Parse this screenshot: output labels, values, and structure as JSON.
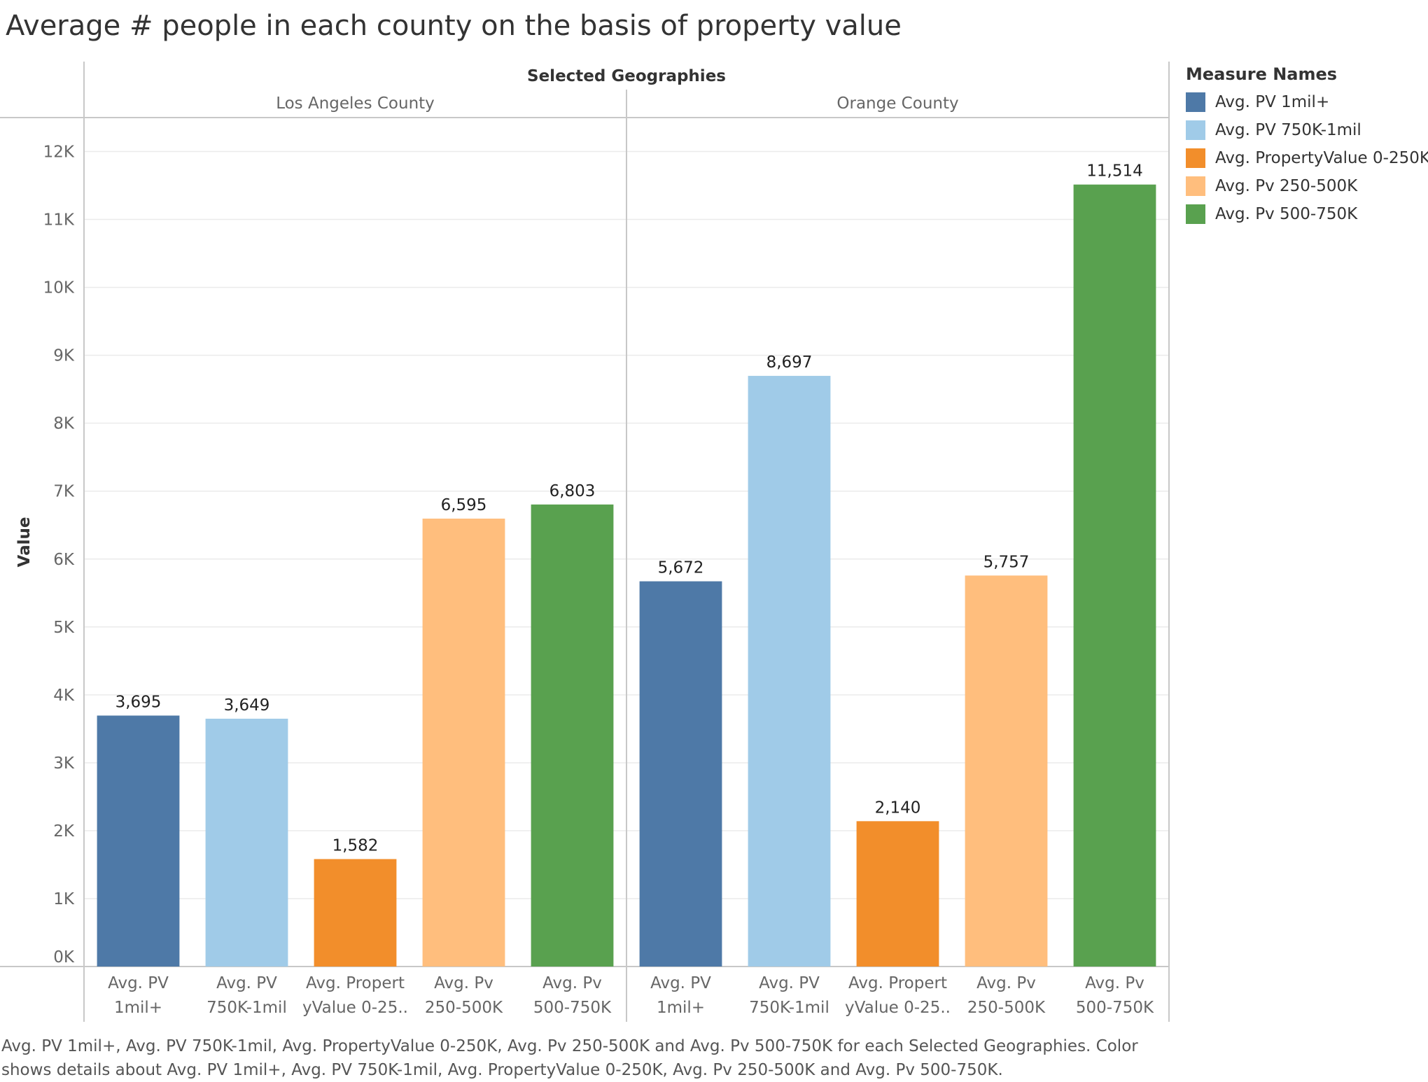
{
  "chart_data": {
    "type": "bar",
    "title": "Average # people in each county on the basis of property value",
    "column_header": "Selected Geographies",
    "ylabel": "Value",
    "ylim": [
      0,
      12500
    ],
    "y_ticks": [
      {
        "value": 0,
        "label": "0K"
      },
      {
        "value": 1000,
        "label": "1K"
      },
      {
        "value": 2000,
        "label": "2K"
      },
      {
        "value": 3000,
        "label": "3K"
      },
      {
        "value": 4000,
        "label": "4K"
      },
      {
        "value": 5000,
        "label": "5K"
      },
      {
        "value": 6000,
        "label": "6K"
      },
      {
        "value": 7000,
        "label": "7K"
      },
      {
        "value": 8000,
        "label": "8K"
      },
      {
        "value": 9000,
        "label": "9K"
      },
      {
        "value": 10000,
        "label": "10K"
      },
      {
        "value": 11000,
        "label": "11K"
      },
      {
        "value": 12000,
        "label": "12K"
      }
    ],
    "grid": true,
    "legend_title": "Measure Names",
    "legend_position": "right",
    "measures": [
      {
        "name": "Avg. PV 1mil+",
        "tick": [
          "Avg. PV",
          "1mil+"
        ],
        "color": "#4e79a7"
      },
      {
        "name": "Avg. PV 750K-1mil",
        "tick": [
          "Avg. PV",
          "750K-1mil"
        ],
        "color": "#a0cbe8"
      },
      {
        "name": "Avg. PropertyValue 0-250K",
        "tick": [
          "Avg. Propert",
          "yValue 0-25.."
        ],
        "color": "#f28e2b"
      },
      {
        "name": "Avg. Pv 250-500K",
        "tick": [
          "Avg. Pv",
          "250-500K"
        ],
        "color": "#ffbe7d"
      },
      {
        "name": "Avg. Pv 500-750K",
        "tick": [
          "Avg. Pv",
          "500-750K"
        ],
        "color": "#59a14f"
      }
    ],
    "panels": [
      {
        "name": "Los Angeles County",
        "values": [
          3695,
          3649,
          1582,
          6595,
          6803
        ],
        "labels": [
          "3,695",
          "3,649",
          "1,582",
          "6,595",
          "6,803"
        ]
      },
      {
        "name": "Orange County",
        "values": [
          5672,
          8697,
          2140,
          5757,
          11514
        ],
        "labels": [
          "5,672",
          "8,697",
          "2,140",
          "5,757",
          "11,514"
        ]
      }
    ],
    "caption": "Avg. PV 1mil+, Avg. PV 750K-1mil, Avg. PropertyValue 0-250K, Avg. Pv 250-500K and Avg. Pv 500-750K for each Selected Geographies.  Color shows details about Avg. PV 1mil+, Avg. PV 750K-1mil, Avg. PropertyValue 0-250K, Avg. Pv 250-500K and Avg. Pv 500-750K."
  }
}
